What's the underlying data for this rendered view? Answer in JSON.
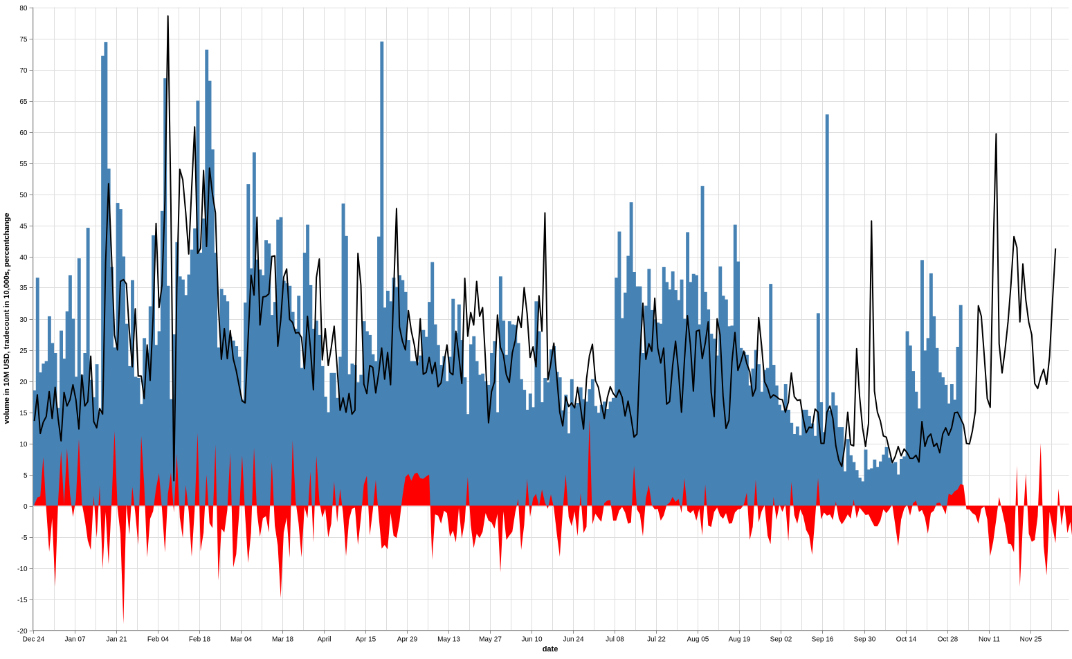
{
  "chart_data": {
    "type": "bar",
    "xlabel": "date",
    "ylabel": "volume in 10M USD, tradecount in 10,000s, percentchange",
    "ylim": [
      -20,
      80
    ],
    "y_ticks": [
      -20,
      -15,
      -10,
      -5,
      0,
      5,
      10,
      15,
      20,
      25,
      30,
      35,
      40,
      45,
      50,
      55,
      60,
      65,
      70,
      75,
      80
    ],
    "x_range": [
      "2018-12-24",
      "2019-12-08"
    ],
    "x_ticks": [
      {
        "date": "2018-12-24",
        "label": "Dec 24"
      },
      {
        "date": "2019-01-07",
        "label": "Jan 07"
      },
      {
        "date": "2019-01-21",
        "label": "Jan 21"
      },
      {
        "date": "2019-02-04",
        "label": "Feb 04"
      },
      {
        "date": "2019-02-18",
        "label": "Feb 18"
      },
      {
        "date": "2019-03-04",
        "label": "Mar 04"
      },
      {
        "date": "2019-03-18",
        "label": "Mar 18"
      },
      {
        "date": "2019-04-01",
        "label": "April"
      },
      {
        "date": "2019-04-15",
        "label": "Apr 15"
      },
      {
        "date": "2019-04-29",
        "label": "Apr 29"
      },
      {
        "date": "2019-05-13",
        "label": "May 13"
      },
      {
        "date": "2019-05-27",
        "label": "May 27"
      },
      {
        "date": "2019-06-10",
        "label": "Jun 10"
      },
      {
        "date": "2019-06-24",
        "label": "Jun 24"
      },
      {
        "date": "2019-07-08",
        "label": "Jul 08"
      },
      {
        "date": "2019-07-22",
        "label": "Jul 22"
      },
      {
        "date": "2019-08-05",
        "label": "Aug 05"
      },
      {
        "date": "2019-08-19",
        "label": "Aug 19"
      },
      {
        "date": "2019-09-02",
        "label": "Sep 02"
      },
      {
        "date": "2019-09-16",
        "label": "Sep 16"
      },
      {
        "date": "2019-09-30",
        "label": "Sep 30"
      },
      {
        "date": "2019-10-14",
        "label": "Oct 14"
      },
      {
        "date": "2019-10-28",
        "label": "Oct 28"
      },
      {
        "date": "2019-11-11",
        "label": "Nov 11"
      },
      {
        "date": "2019-11-25",
        "label": "Nov 25"
      }
    ],
    "grid": true,
    "series_start_date": "2018-12-24",
    "colors": {
      "volume": "#4682b4",
      "tradecount": "#000000",
      "percentchange": "#ff0000"
    },
    "series": [
      {
        "style": "bar",
        "values": [
          18.5,
          36.6,
          21.4,
          22.8,
          23.2,
          30.4,
          26.1,
          24.5,
          15.7,
          28.1,
          23.6,
          31.2,
          37.0,
          30.0,
          20.7,
          39.7,
          21.0,
          24.5,
          44.6,
          20.2,
          17.4,
          22.7,
          15.0,
          72.2,
          74.4,
          54.1,
          38.3,
          25.4,
          48.6,
          47.6,
          40.0,
          29.2,
          22.4,
          36.2,
          20.7,
          20.5,
          16.3,
          26.9,
          24.5,
          32.0,
          43.4,
          25.8,
          28.0,
          47.3,
          68.6,
          35.3,
          17.1,
          27.5,
          42.3,
          36.8,
          36.3,
          33.8,
          37.1,
          41.1,
          44.5,
          65.0,
          40.6,
          46.1,
          73.2,
          68.2,
          57.2,
          40.6,
          25.4,
          34.8,
          33.8,
          32.8,
          27.1,
          26.5,
          25.6,
          23.9,
          17.0,
          32.6,
          51.6,
          38.1,
          56.7,
          39.5,
          37.9,
          37.0,
          42.6,
          42.1,
          30.6,
          32.7,
          45.9,
          46.3,
          36.1,
          35.7,
          35.3,
          31.1,
          28.4,
          33.7,
          22.1,
          40.6,
          45.1,
          35.4,
          28.4,
          29.7,
          27.4,
          22.4,
          17.5,
          15.0,
          21.3,
          21.3,
          17.3,
          23.9,
          48.5,
          43.3,
          21.1,
          22.8,
          22.6,
          19.8,
          21.0,
          29.6,
          28.0,
          27.4,
          24.3,
          23.2,
          43.2,
          74.5,
          31.8,
          34.5,
          32.8,
          36.6,
          35.1,
          37.0,
          36.2,
          34.3,
          26.6,
          23.2,
          23.2,
          23.0,
          24.1,
          28.2,
          27.1,
          32.7,
          39.1,
          29.1,
          25.8,
          22.6,
          24.0,
          20.0,
          23.9,
          33.2,
          27.7,
          32.3,
          26.6,
          20.6,
          14.7,
          25.9,
          27.2,
          23.2,
          21.0,
          21.2,
          20.0,
          19.4,
          24.5,
          26.4,
          15.0,
          36.8,
          29.7,
          24.2,
          29.6,
          29.1,
          29.0,
          26.1,
          20.3,
          18.6,
          15.4,
          18.0,
          15.8,
          32.8,
          28.0,
          16.6,
          20.5,
          19.8,
          25.1,
          25.6,
          21.5,
          20.6,
          15.3,
          17.8,
          11.6,
          20.3,
          16.0,
          16.5,
          19.0,
          17.1,
          16.7,
          18.7,
          20.3,
          16.0,
          14.9,
          16.2,
          16.7,
          15.5,
          16.7,
          17.3,
          36.6,
          44.0,
          30.1,
          34.2,
          40.1,
          48.7,
          37.5,
          35.2,
          35.2,
          24.5,
          32.1,
          38.0,
          31.4,
          29.9,
          29.4,
          29.2,
          38.3,
          35.9,
          34.7,
          37.6,
          34.6,
          33.0,
          36.3,
          30.0,
          43.9,
          35.9,
          37.2,
          37.0,
          29.1,
          51.3,
          34.3,
          31.5,
          27.6,
          26.8,
          24.1,
          38.4,
          33.7,
          33.1,
          28.8,
          28.9,
          45.1,
          39.2,
          25.3,
          24.7,
          24.2,
          19.3,
          22.0,
          25.0,
          22.7,
          18.3,
          21.8,
          22.1,
          35.6,
          22.6,
          19.3,
          16.2,
          15.3,
          19.5,
          15.4,
          13.3,
          11.5,
          12.7,
          11.3,
          15.4,
          15.4,
          14.4,
          13.2,
          11.2,
          30.9,
          16.6,
          11.8,
          62.8,
          15.3,
          18.2,
          16.1,
          12.6,
          12.6,
          5.5,
          10.7,
          8.1,
          7.0,
          5.7,
          4.5,
          3.9,
          9.0,
          5.8,
          6.0,
          7.4,
          6.2,
          7.1,
          8.2,
          9.4,
          7.7,
          6.8,
          7.0,
          5.0,
          7.5,
          7.9,
          28.0,
          25.7,
          21.6,
          18.3,
          15.6,
          39.4,
          24.9,
          26.9,
          37.3,
          30.4,
          25.3,
          21.4,
          20.6,
          19.4,
          16.4,
          19.5,
          17.0,
          25.5,
          32.2
        ]
      },
      {
        "style": "area",
        "values": [
          0.2,
          1.3,
          1.5,
          7.8,
          -0.5,
          -7.4,
          -2.0,
          -13.0,
          0.6,
          8.8,
          0.2,
          9.2,
          1.9,
          -1.8,
          1.0,
          10.7,
          0.4,
          -2.2,
          -5.6,
          -7.1,
          1.6,
          -5.2,
          3.2,
          -10.2,
          -1.0,
          -9.4,
          0.2,
          12.0,
          -0.3,
          -4.5,
          -19.0,
          0.3,
          -4.7,
          3.0,
          -1.2,
          -6.3,
          11.2,
          3.3,
          -8.3,
          -2.1,
          -0.9,
          2.8,
          5.2,
          -0.6,
          -7.5,
          1.9,
          5.3,
          -1.1,
          8.3,
          -1.9,
          -5.2,
          3.3,
          -0.9,
          -8.2,
          -0.7,
          11.7,
          -7.3,
          -4.3,
          5.0,
          -2.8,
          -3.6,
          9.8,
          -12.0,
          -3.7,
          -4.3,
          -0.7,
          8.4,
          -9.9,
          -7.8,
          -1.2,
          8.1,
          -1.5,
          -9.2,
          -4.3,
          9.3,
          -1.1,
          -5.0,
          -2.0,
          -1.7,
          -4.3,
          7.0,
          -3.2,
          -6.4,
          -14.8,
          -4.3,
          -1.9,
          -8.4,
          10.5,
          0.8,
          -2.8,
          -8.3,
          -0.2,
          -2.0,
          5.5,
          -5.9,
          8.0,
          0.7,
          -1.9,
          -0.5,
          -5.1,
          -2.9,
          3.9,
          -2.7,
          2.7,
          -1.3,
          -8.1,
          -2.3,
          -0.5,
          -0.3,
          -6.3,
          -2.0,
          3.4,
          4.8,
          -4.8,
          -0.8,
          4.1,
          -1.6,
          -6.9,
          -6.3,
          -7.0,
          -1.2,
          -4.8,
          -5.2,
          -2.6,
          1.5,
          4.6,
          5.1,
          4.0,
          5.1,
          5.3,
          4.4,
          4.3,
          4.7,
          5.0,
          -8.7,
          -1.4,
          -1.6,
          -2.9,
          -0.8,
          -1.2,
          -5.0,
          -4.0,
          -5.9,
          -0.4,
          -5.3,
          -2.5,
          4.6,
          -3.1,
          -6.8,
          -4.5,
          -5.2,
          -4.2,
          -1.2,
          -2.4,
          -2.7,
          -3.7,
          -1.3,
          -10.7,
          -0.9,
          -5.5,
          -4.8,
          -4.2,
          -1.1,
          1.1,
          -7.1,
          -3.1,
          4.3,
          -1.8,
          1.2,
          1.9,
          -0.1,
          2.6,
          0.5,
          -0.5,
          1.8,
          -0.3,
          -4.5,
          -8.2,
          -0.8,
          5.0,
          -1.8,
          -3.3,
          -0.9,
          -4.9,
          2.0,
          -4.4,
          -3.4,
          13.9,
          -3.0,
          -1.3,
          -2.0,
          -2.6,
          0.4,
          0.8,
          0.9,
          -2.4,
          -2.4,
          -0.8,
          -0.2,
          -1.1,
          -2.9,
          -2.7,
          6.4,
          -0.6,
          -1.4,
          -4.9,
          1.2,
          3.3,
          0.1,
          -0.6,
          -0.5,
          -2.4,
          -1.6,
          0.1,
          0.5,
          1.4,
          0.6,
          1.1,
          -1.2,
          4.4,
          -0.8,
          -1.2,
          -0.7,
          -2.4,
          -0.5,
          -4.8,
          3.4,
          -3.2,
          -3.4,
          -1.0,
          -0.3,
          -1.6,
          -2.1,
          -1.2,
          -2.9,
          -2.8,
          -1.1,
          -0.6,
          -0.5,
          0.2,
          2.1,
          -5.5,
          -3.4,
          4.2,
          -2.7,
          -0.9,
          0.1,
          -4.8,
          -6.2,
          1.4,
          -2.3,
          0.2,
          -1.0,
          0.3,
          -5.7,
          3.8,
          -1.5,
          -2.9,
          -0.6,
          -1.7,
          -3.9,
          -4.8,
          -7.9,
          -2.1,
          4.4,
          -2.2,
          -1.1,
          -1.6,
          -1.4,
          -2.3,
          0.7,
          -2.1,
          -3.0,
          -2.3,
          -1.4,
          -2.1,
          1.0,
          -2.0,
          -0.3,
          -0.9,
          -1.5,
          -1.4,
          -2.4,
          -3.3,
          -3.3,
          -2.4,
          -0.6,
          -1.2,
          -0.6,
          0.2,
          -3.1,
          -6.5,
          -2.2,
          -0.5,
          0.2,
          -1.6,
          0.4,
          0.8,
          -1.0,
          -0.7,
          -1.9,
          -4.5,
          -1.2,
          -0.8,
          0.4,
          0.5,
          -0.3,
          -1.4,
          1.9,
          1.7,
          2.3,
          2.6,
          3.5,
          3.3,
          -0.6,
          -0.6,
          -1.2,
          -1.5,
          -2.9,
          -0.5,
          -0.1,
          -2.2,
          -8.1,
          -5.8,
          -2.3,
          1.4,
          -0.8,
          -3.0,
          -6.1,
          -6.2,
          -7.5,
          6.4,
          -13.0,
          -2.9,
          5.2,
          -4.5,
          -5.8,
          -5.5,
          -1.7,
          10.0,
          -6.5,
          -11.2,
          -1.0,
          -3.5,
          -6.0,
          2.7,
          -3.2,
          0.2,
          -4.4,
          -2.6,
          -6.5,
          -6.8,
          -4.6
        ]
      },
      {
        "style": "line",
        "values": [
          13.6,
          17.8,
          11.6,
          13.4,
          14.3,
          18.3,
          14.0,
          19.0,
          14.0,
          10.4,
          18.2,
          16.0,
          17.0,
          19.4,
          17.0,
          12.3,
          21.0,
          16.0,
          16.7,
          24.0,
          13.5,
          12.5,
          15.6,
          14.7,
          39.0,
          51.7,
          40.0,
          27.4,
          25.0,
          36.0,
          36.3,
          35.6,
          28.0,
          22.3,
          31.6,
          20.8,
          20.8,
          17.2,
          25.8,
          20.1,
          30.3,
          45.3,
          31.8,
          35.4,
          49.0,
          78.6,
          48.1,
          4.0,
          35.4,
          54.0,
          52.3,
          47.0,
          40.4,
          51.0,
          60.8,
          40.5,
          41.3,
          53.8,
          41.6,
          54.2,
          50.0,
          47.0,
          32.0,
          23.5,
          28.4,
          23.6,
          28.1,
          23.6,
          21.7,
          19.2,
          16.8,
          16.5,
          26.8,
          37.0,
          33.8,
          46.3,
          29.0,
          33.5,
          33.6,
          34.0,
          40.0,
          40.1,
          25.6,
          29.8,
          36.7,
          38.0,
          29.9,
          29.4,
          27.7,
          27.8,
          27.0,
          22.0,
          30.4,
          25.3,
          18.6,
          36.6,
          39.6,
          23.4,
          28.4,
          22.5,
          25.3,
          28.8,
          22.2,
          15.3,
          17.3,
          15.0,
          18.0,
          14.7,
          15.3,
          40.5,
          35.4,
          19.5,
          18.0,
          22.5,
          22.2,
          18.1,
          21.3,
          25.3,
          20.3,
          24.6,
          19.4,
          33.8,
          47.7,
          28.7,
          26.4,
          25.0,
          31.3,
          28.0,
          25.8,
          22.6,
          30.0,
          21.1,
          21.4,
          23.8,
          21.2,
          23.0,
          19.1,
          19.7,
          23.0,
          25.8,
          21.4,
          21.0,
          28.0,
          24.0,
          19.6,
          36.5,
          27.2,
          31.0,
          29.0,
          36.0,
          30.4,
          31.8,
          23.0,
          13.3,
          18.3,
          19.9,
          30.6,
          25.4,
          24.2,
          21.0,
          19.8,
          24.5,
          26.5,
          30.4,
          28.6,
          35.0,
          30.8,
          23.8,
          25.5,
          22.3,
          33.7,
          28.0,
          47.0,
          20.2,
          22.9,
          26.1,
          20.6,
          15.0,
          12.8,
          17.5,
          15.9,
          16.5,
          15.7,
          19.0,
          15.8,
          12.3,
          20.3,
          24.1,
          25.9,
          20.1,
          19.0,
          16.3,
          14.0,
          17.3,
          19.1,
          18.0,
          17.4,
          18.6,
          17.4,
          14.4,
          16.8,
          14.2,
          11.0,
          11.5,
          23.8,
          32.5,
          23.5,
          26.0,
          24.8,
          33.3,
          25.3,
          22.9,
          25.3,
          16.3,
          16.7,
          22.4,
          26.4,
          21.5,
          15.0,
          23.4,
          30.5,
          25.8,
          18.4,
          28.0,
          28.2,
          23.6,
          26.1,
          29.5,
          18.2,
          14.3,
          30.0,
          27.4,
          17.6,
          12.4,
          13.7,
          23.1,
          27.8,
          21.7,
          23.1,
          24.8,
          22.8,
          21.5,
          17.6,
          18.8,
          30.2,
          25.6,
          19.9,
          18.9,
          17.3,
          17.8,
          17.5,
          17.1,
          17.0,
          15.0,
          16.6,
          21.3,
          17.5,
          16.9,
          17.0,
          14.0,
          11.7,
          12.6,
          12.5,
          15.5,
          15.0,
          10.0,
          10.0,
          15.0,
          16.0,
          14.0,
          9.6,
          7.3,
          6.3,
          9.6,
          15.0,
          9.8,
          9.6,
          25.2,
          17.5,
          12.5,
          9.5,
          13.2,
          45.7,
          18.4,
          15.0,
          13.6,
          11.2,
          11.0,
          9.0,
          6.9,
          7.9,
          9.5,
          8.0,
          9.1,
          8.5,
          7.6,
          7.6,
          8.1,
          7.0,
          13.5,
          9.5,
          11.0,
          11.5,
          9.5,
          10.0,
          8.5,
          11.5,
          12.5,
          11.3,
          12.5,
          14.9,
          15.0,
          14.0,
          13.0,
          10.0,
          9.9,
          12.0,
          15.2,
          32.1,
          30.4,
          24.0,
          17.2,
          15.8,
          40.7,
          59.7,
          26.0,
          21.3,
          25.0,
          29.5,
          35.6,
          43.2,
          41.4,
          29.5,
          38.8,
          33.0,
          29.4,
          27.4,
          19.6,
          18.8,
          20.6,
          21.9,
          19.5,
          24.0,
          33.0,
          41.3
        ]
      }
    ]
  }
}
